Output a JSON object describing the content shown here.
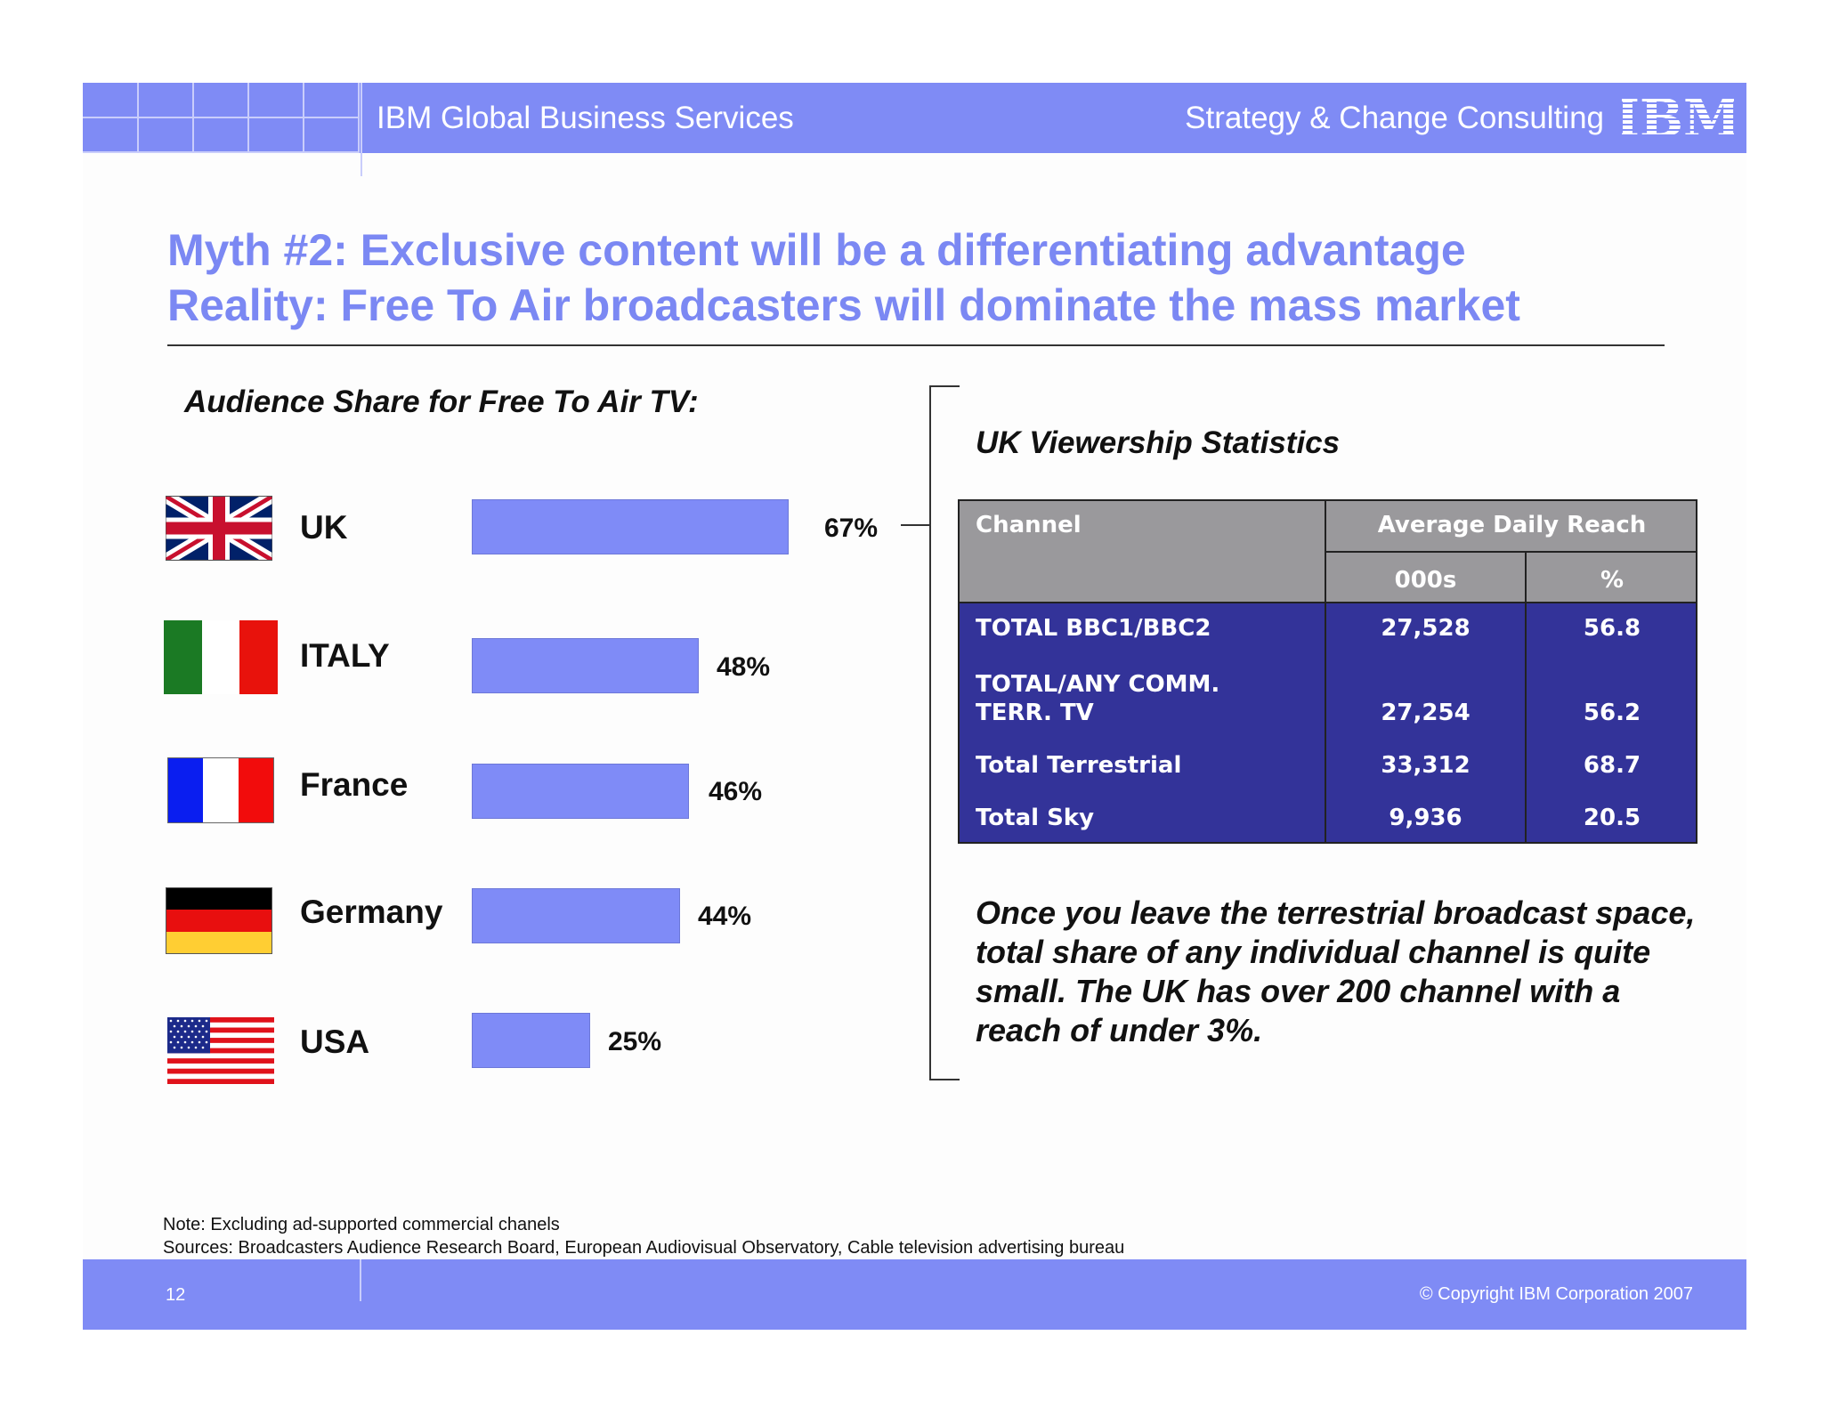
{
  "header": {
    "left_title": "IBM Global Business Services",
    "right_title": "Strategy & Change Consulting",
    "logo_text": "IBM"
  },
  "title": {
    "line1": "Myth #2: Exclusive content will be a differentiating advantage",
    "line2": "Reality: Free To Air broadcasters will dominate the mass market"
  },
  "chart_data": {
    "type": "bar",
    "orientation": "horizontal",
    "title": "Audience Share for Free To Air TV:",
    "categories": [
      "UK",
      "ITALY",
      "France",
      "Germany",
      "USA"
    ],
    "values": [
      67,
      48,
      46,
      44,
      25
    ],
    "labels": [
      "67%",
      "48%",
      "46%",
      "44%",
      "25%"
    ],
    "flags": [
      "uk-flag-icon",
      "italy-flag-icon",
      "france-flag-icon",
      "germany-flag-icon",
      "usa-flag-icon"
    ],
    "bar_color": "#7f8bf7",
    "grid": false
  },
  "stats": {
    "title": "UK Viewership Statistics",
    "headers": {
      "channel": "Channel",
      "reach": "Average Daily Reach",
      "thousands": "000s",
      "percent": "%"
    },
    "rows": [
      {
        "channel": "TOTAL BBC1/BBC2",
        "thousands": "27,528",
        "percent": "56.8"
      },
      {
        "channel": "TOTAL/ANY COMM.\nTERR. TV",
        "thousands": "27,254",
        "percent": "56.2"
      },
      {
        "channel": "Total Terrestrial",
        "thousands": "33,312",
        "percent": "68.7"
      },
      {
        "channel": "Total Sky",
        "thousands": "9,936",
        "percent": "20.5"
      }
    ]
  },
  "commentary": "Once you leave the terrestrial broadcast space, total share of any individual channel is quite small.  The UK has over 200 channel with a reach of under 3%.",
  "notes": {
    "note": "Note: Excluding ad-supported commercial chanels",
    "sources": "Sources: Broadcasters Audience Research Board, European Audiovisual Observatory, Cable television advertising bureau"
  },
  "footer": {
    "page": "12",
    "copyright": "© Copyright IBM Corporation 2007"
  },
  "colors": {
    "accent": "#7f8bf5",
    "title": "#7b88f3",
    "table_header": "#9a999c",
    "table_body": "#333399"
  }
}
